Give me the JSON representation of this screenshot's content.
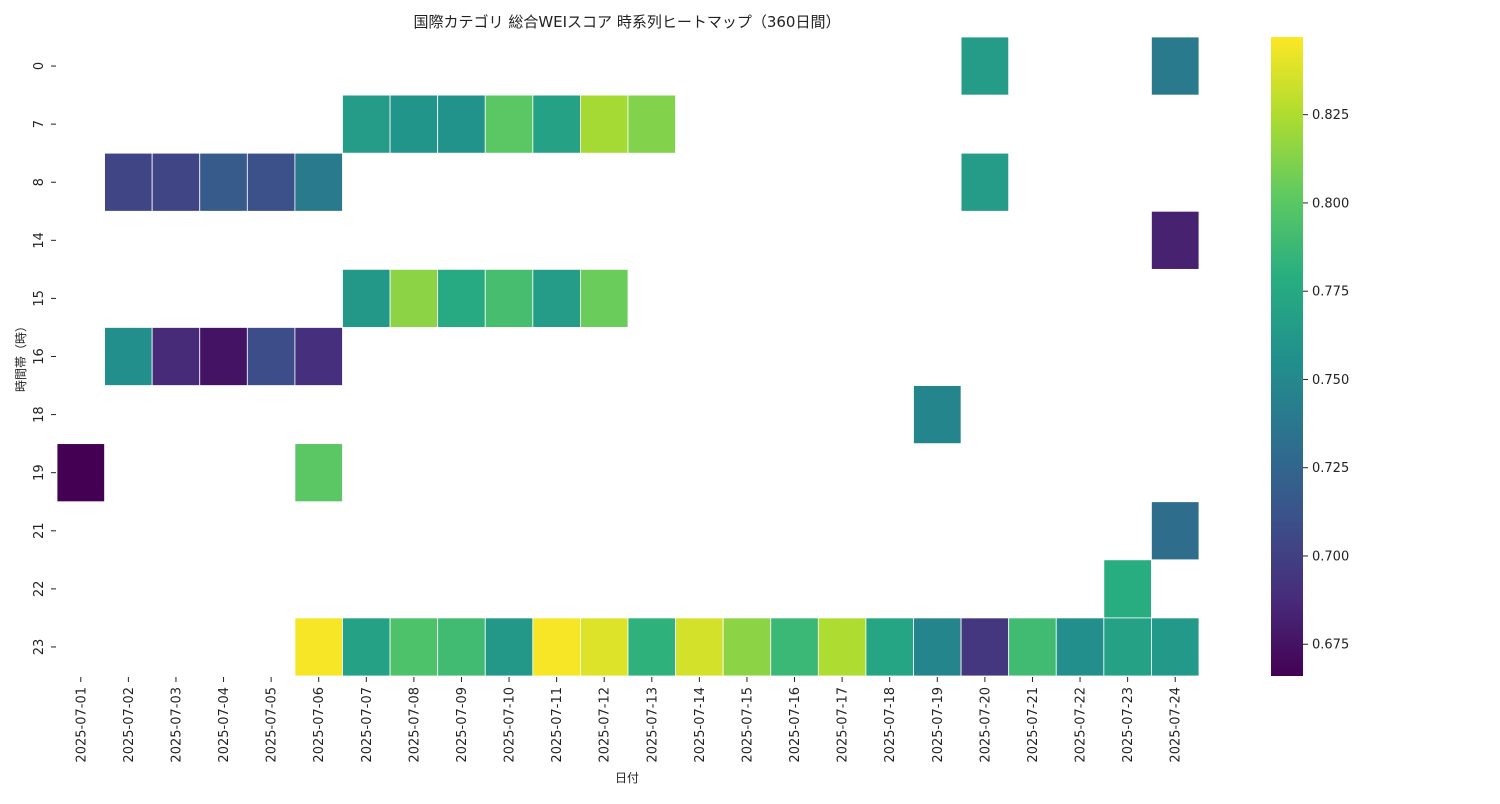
{
  "chart_data": {
    "type": "heatmap",
    "title": "国際カテゴリ 総合WEIスコア 時系列ヒートマップ（360日間）",
    "xlabel": "日付",
    "ylabel": "時間帯（時）",
    "x": [
      "2025-07-01",
      "2025-07-02",
      "2025-07-03",
      "2025-07-04",
      "2025-07-05",
      "2025-07-06",
      "2025-07-07",
      "2025-07-08",
      "2025-07-09",
      "2025-07-10",
      "2025-07-11",
      "2025-07-12",
      "2025-07-13",
      "2025-07-14",
      "2025-07-15",
      "2025-07-16",
      "2025-07-17",
      "2025-07-18",
      "2025-07-19",
      "2025-07-20",
      "2025-07-21",
      "2025-07-22",
      "2025-07-23",
      "2025-07-24"
    ],
    "y": [
      "0",
      "7",
      "8",
      "14",
      "15",
      "16",
      "18",
      "19",
      "21",
      "22",
      "23"
    ],
    "values": [
      [
        null,
        null,
        null,
        null,
        null,
        null,
        null,
        null,
        null,
        null,
        null,
        null,
        null,
        null,
        null,
        null,
        null,
        null,
        null,
        0.765,
        null,
        null,
        null,
        0.74
      ],
      [
        null,
        null,
        null,
        null,
        null,
        null,
        0.765,
        0.76,
        0.758,
        0.8,
        0.77,
        0.822,
        0.812,
        null,
        null,
        null,
        null,
        null,
        null,
        null,
        null,
        null,
        null,
        null
      ],
      [
        null,
        0.703,
        0.703,
        0.718,
        0.71,
        0.74,
        null,
        null,
        null,
        null,
        null,
        null,
        null,
        null,
        null,
        null,
        null,
        null,
        null,
        0.765,
        null,
        null,
        null,
        null
      ],
      [
        null,
        null,
        null,
        null,
        null,
        null,
        null,
        null,
        null,
        null,
        null,
        null,
        null,
        null,
        null,
        null,
        null,
        null,
        null,
        null,
        null,
        null,
        null,
        0.683
      ],
      [
        null,
        null,
        null,
        null,
        null,
        null,
        0.762,
        0.815,
        0.775,
        0.792,
        0.765,
        0.805,
        null,
        null,
        null,
        null,
        null,
        null,
        null,
        null,
        null,
        null,
        null,
        null
      ],
      [
        null,
        0.755,
        0.687,
        0.675,
        0.708,
        0.69,
        null,
        null,
        null,
        null,
        null,
        null,
        null,
        null,
        null,
        null,
        null,
        null,
        null,
        null,
        null,
        null,
        null,
        null
      ],
      [
        null,
        null,
        null,
        null,
        null,
        null,
        null,
        null,
        null,
        null,
        null,
        null,
        null,
        null,
        null,
        null,
        null,
        null,
        0.748,
        null,
        null,
        null,
        null,
        null
      ],
      [
        0.666,
        null,
        null,
        null,
        null,
        0.8,
        null,
        null,
        null,
        null,
        null,
        null,
        null,
        null,
        null,
        null,
        null,
        null,
        null,
        null,
        null,
        null,
        null,
        null
      ],
      [
        null,
        null,
        null,
        null,
        null,
        null,
        null,
        null,
        null,
        null,
        null,
        null,
        null,
        null,
        null,
        null,
        null,
        null,
        null,
        null,
        null,
        null,
        null,
        0.73
      ],
      [
        null,
        null,
        null,
        null,
        null,
        null,
        null,
        null,
        null,
        null,
        null,
        null,
        null,
        null,
        null,
        null,
        null,
        null,
        null,
        null,
        null,
        null,
        0.778,
        null
      ],
      [
        null,
        null,
        null,
        null,
        null,
        0.845,
        0.77,
        0.795,
        0.79,
        0.762,
        0.845,
        0.838,
        0.782,
        0.835,
        0.815,
        0.787,
        0.825,
        0.772,
        0.748,
        0.695,
        0.79,
        0.755,
        0.77,
        0.763
      ]
    ],
    "colorbar": {
      "colormap": "viridis",
      "min": 0.666,
      "max": 0.847,
      "ticks": [
        "0.675",
        "0.700",
        "0.725",
        "0.750",
        "0.775",
        "0.800",
        "0.825"
      ]
    }
  }
}
